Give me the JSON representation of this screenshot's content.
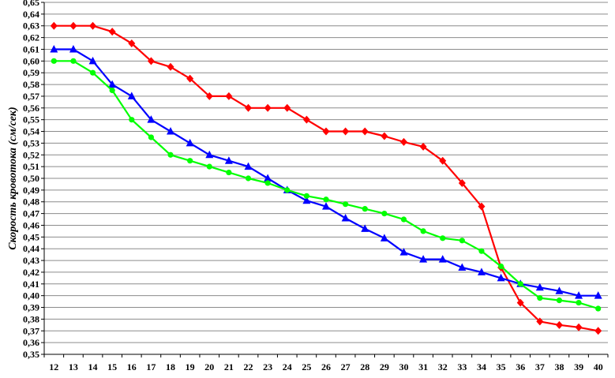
{
  "chart_data": {
    "type": "line",
    "title": "",
    "xlabel": "",
    "ylabel": "Скорость кровотока (см/сек)",
    "x": [
      12,
      13,
      14,
      15,
      16,
      17,
      18,
      19,
      20,
      21,
      22,
      23,
      24,
      25,
      26,
      27,
      28,
      29,
      30,
      31,
      32,
      33,
      34,
      35,
      36,
      37,
      38,
      39,
      40
    ],
    "ylim": [
      0.35,
      0.65
    ],
    "ytick_step": 0.01,
    "grid": true,
    "legend": "none",
    "series": [
      {
        "color": "#ff0000",
        "marker": "diamond",
        "values": [
          0.63,
          0.63,
          0.63,
          0.625,
          0.615,
          0.6,
          0.595,
          0.585,
          0.57,
          0.57,
          0.56,
          0.56,
          0.56,
          0.55,
          0.54,
          0.54,
          0.54,
          0.536,
          0.531,
          0.527,
          0.515,
          0.496,
          0.476,
          0.424,
          0.394,
          0.378,
          0.375,
          0.373,
          0.37
        ]
      },
      {
        "color": "#0000ff",
        "marker": "triangle",
        "values": [
          0.61,
          0.61,
          0.6,
          0.58,
          0.57,
          0.55,
          0.54,
          0.53,
          0.52,
          0.515,
          0.51,
          0.5,
          0.49,
          0.481,
          0.476,
          0.466,
          0.457,
          0.449,
          0.437,
          0.431,
          0.431,
          0.424,
          0.42,
          0.415,
          0.41,
          0.407,
          0.404,
          0.4,
          0.4
        ]
      },
      {
        "color": "#00ff00",
        "marker": "circle",
        "values": [
          0.6,
          0.6,
          0.59,
          0.575,
          0.55,
          0.535,
          0.52,
          0.515,
          0.51,
          0.505,
          0.5,
          0.496,
          0.49,
          0.485,
          0.482,
          0.478,
          0.474,
          0.47,
          0.465,
          0.455,
          0.449,
          0.447,
          0.438,
          0.425,
          0.41,
          0.398,
          0.396,
          0.394,
          0.389
        ]
      }
    ]
  }
}
